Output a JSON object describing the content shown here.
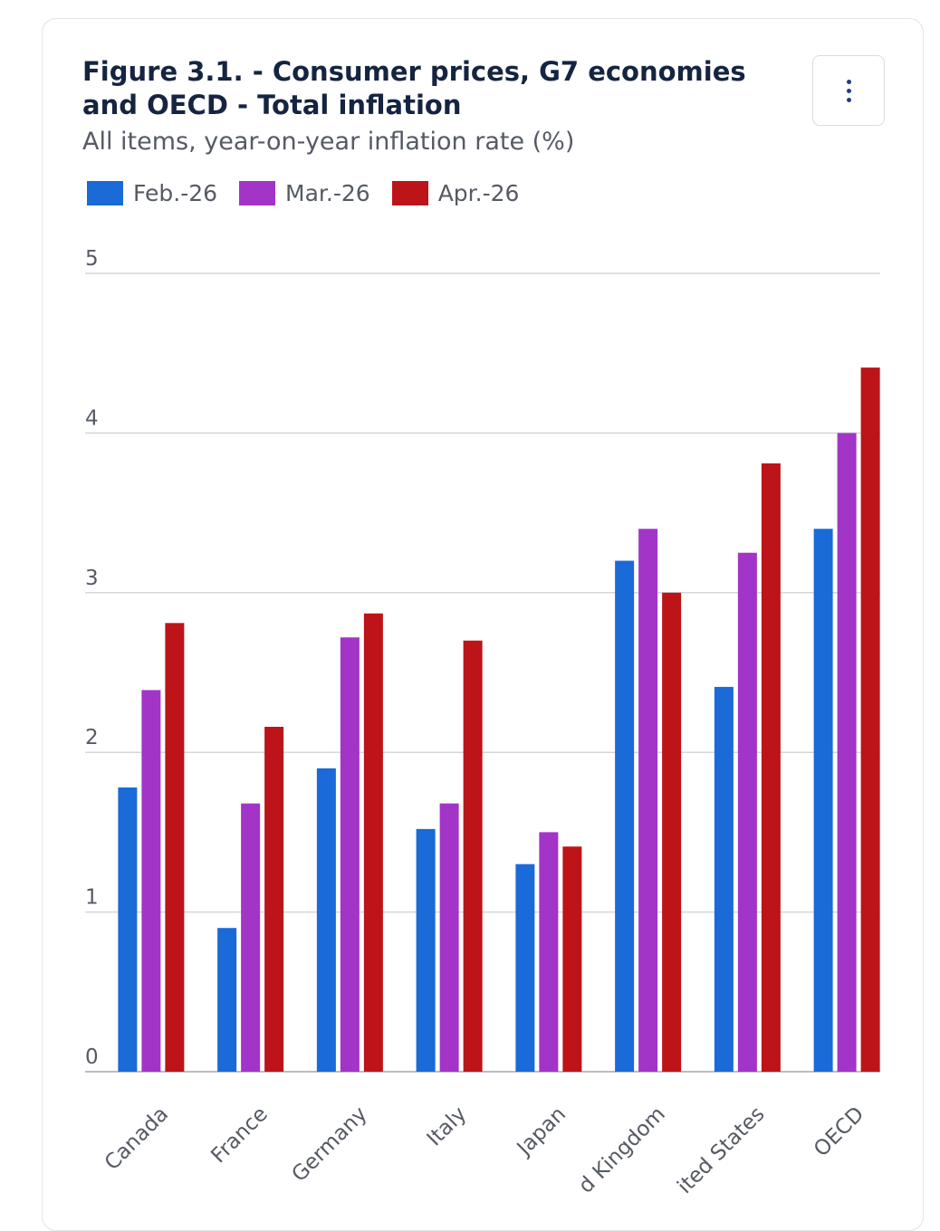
{
  "header": {
    "title": "Figure 3.1. - Consumer prices, G7 economies and OECD - Total inflation",
    "subtitle": "All items, year-on-year inflation rate (%)"
  },
  "menu": {
    "icon": "kebab-icon"
  },
  "legend": [
    {
      "label": "Feb.-26",
      "color": "#1a6ad8"
    },
    {
      "label": "Mar.-26",
      "color": "#a234c8"
    },
    {
      "label": "Apr.-26",
      "color": "#bc1418"
    }
  ],
  "chart_data": {
    "type": "bar",
    "title": "Figure 3.1. - Consumer prices, G7 economies and OECD - Total inflation",
    "subtitle": "All items, year-on-year inflation rate (%)",
    "categories": [
      "Canada",
      "France",
      "Germany",
      "Italy",
      "Japan",
      "d Kingdom",
      "ited States",
      "OECD"
    ],
    "series": [
      {
        "name": "Feb.-26",
        "color": "#1a6ad8",
        "values": [
          1.78,
          0.9,
          1.9,
          1.52,
          1.3,
          3.2,
          2.41,
          3.4
        ]
      },
      {
        "name": "Mar.-26",
        "color": "#a234c8",
        "values": [
          2.39,
          1.68,
          2.72,
          1.68,
          1.5,
          3.4,
          3.25,
          4.0
        ]
      },
      {
        "name": "Apr.-26",
        "color": "#bc1418",
        "values": [
          2.81,
          2.16,
          2.87,
          2.7,
          1.41,
          3.0,
          3.81,
          4.41
        ]
      }
    ],
    "yticks": [
      0,
      1,
      2,
      3,
      4,
      5
    ],
    "ylim": [
      0,
      5
    ],
    "grid": true,
    "legend_position": "top-left",
    "xlabel": "",
    "ylabel": ""
  }
}
